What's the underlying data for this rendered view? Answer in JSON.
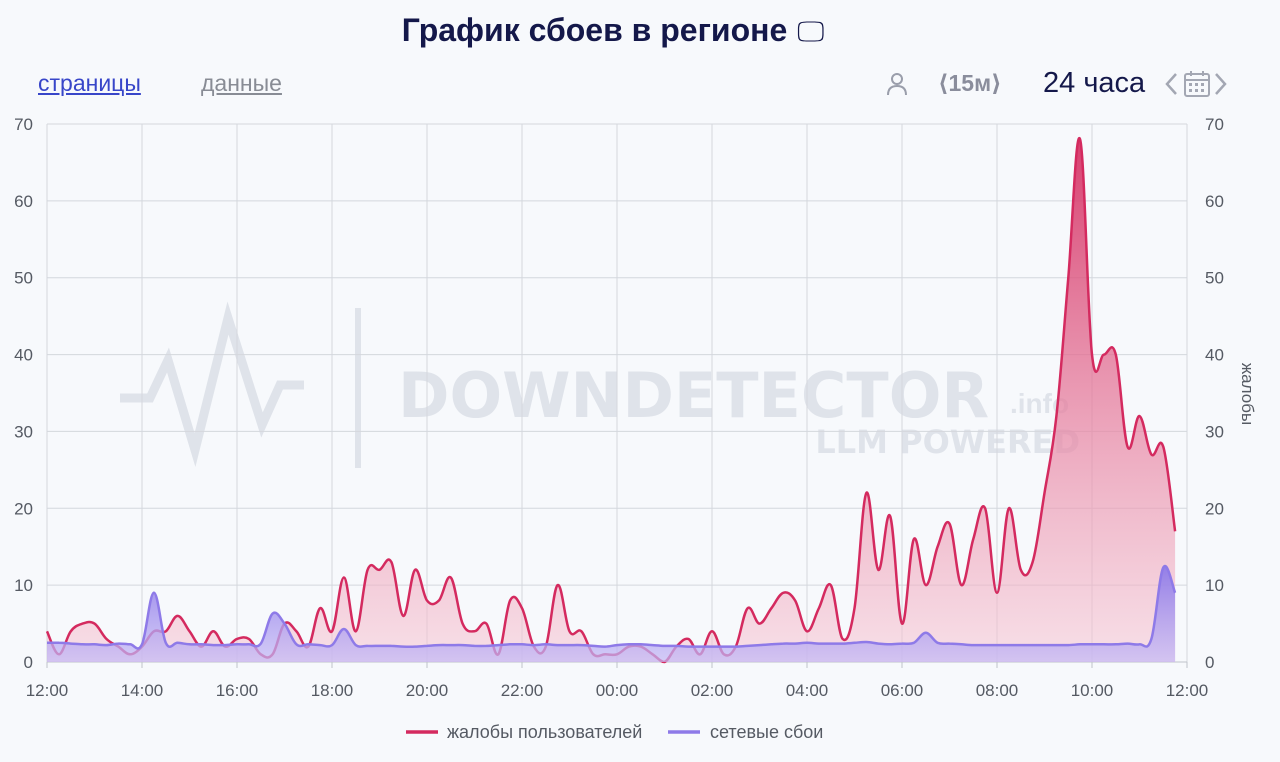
{
  "header": {
    "title": "График сбоев в регионе",
    "title_icon": "🖵"
  },
  "toolbar": {
    "tab_pages": "страницы",
    "tab_data": "данные",
    "interval_label": "⟨15м⟩",
    "range_label": "24 часа"
  },
  "icons": {
    "user": "user-icon",
    "prev": "chevron-left-icon",
    "calendar": "calendar-icon",
    "next": "chevron-right-icon"
  },
  "watermark": {
    "brand": "DOWNDETECTOR",
    "suffix": ".info",
    "tagline": "LLM POWERED"
  },
  "chart_data": {
    "type": "area",
    "x_start_label": "12:00",
    "x_tick_labels": [
      "12:00",
      "14:00",
      "16:00",
      "18:00",
      "20:00",
      "22:00",
      "00:00",
      "02:00",
      "04:00",
      "06:00",
      "08:00",
      "10:00",
      "12:00"
    ],
    "ylim": [
      0,
      70
    ],
    "y_ticks": [
      0,
      10,
      20,
      30,
      40,
      50,
      60,
      70
    ],
    "ylabel_right": "жалобы",
    "grid": true,
    "legend_position": "bottom",
    "series": [
      {
        "name": "жалобы пользователей",
        "color": "#d42a5f",
        "values": [
          4,
          1,
          4,
          5,
          5,
          3,
          2,
          1,
          2,
          4,
          4,
          6,
          4,
          2,
          4,
          2,
          3,
          3,
          1,
          1,
          5,
          4,
          2,
          7,
          4,
          11,
          4,
          12,
          12,
          13,
          6,
          12,
          8,
          8,
          11,
          5,
          4,
          5,
          1,
          8,
          7,
          2,
          2,
          10,
          4,
          4,
          1,
          1,
          1,
          2,
          2,
          1,
          0,
          2,
          3,
          1,
          4,
          1,
          2,
          7,
          5,
          7,
          9,
          8,
          4,
          7,
          10,
          3,
          7,
          22,
          12,
          19,
          5,
          16,
          10,
          15,
          18,
          10,
          16,
          20,
          9,
          20,
          12,
          13,
          22,
          32,
          50,
          68,
          40,
          40,
          40,
          28,
          32,
          27,
          28,
          17
        ],
        "peak": 68
      },
      {
        "name": "сетевые сбои",
        "color": "#8e7ae8",
        "values": [
          2.5,
          2.5,
          2.4,
          2.3,
          2.3,
          2.2,
          2.4,
          2.3,
          2.3,
          9,
          2.5,
          2.5,
          2.3,
          2.3,
          2.2,
          2.2,
          2.3,
          2.3,
          2.4,
          6.3,
          5,
          2.3,
          2.3,
          2.2,
          2.2,
          4.3,
          2.2,
          2.1,
          2.1,
          2.1,
          2.0,
          2.0,
          2.1,
          2.2,
          2.2,
          2.2,
          2.1,
          2.1,
          2.2,
          2.3,
          2.3,
          2.2,
          2.3,
          2.2,
          2.2,
          2.2,
          2.1,
          2.0,
          2.2,
          2.3,
          2.3,
          2.2,
          2.1,
          2.1,
          2.0,
          2.0,
          2.0,
          2.0,
          2.0,
          2.1,
          2.2,
          2.3,
          2.4,
          2.4,
          2.5,
          2.4,
          2.4,
          2.4,
          2.5,
          2.6,
          2.4,
          2.3,
          2.4,
          2.5,
          3.8,
          2.5,
          2.4,
          2.3,
          2.2,
          2.2,
          2.2,
          2.2,
          2.2,
          2.2,
          2.2,
          2.2,
          2.2,
          2.3,
          2.3,
          2.3,
          2.3,
          2.4,
          2.3,
          3,
          12.3,
          9
        ]
      }
    ]
  }
}
